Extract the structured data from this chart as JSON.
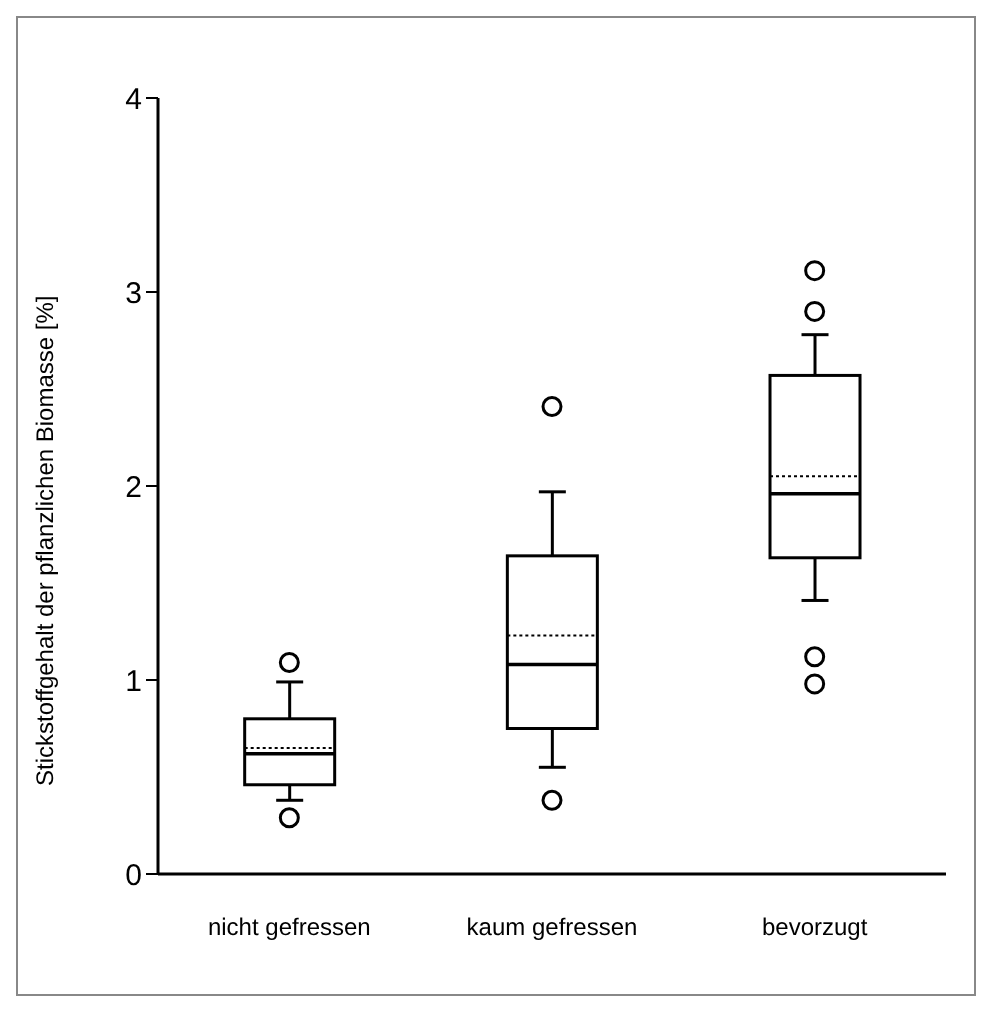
{
  "chart_data": {
    "type": "box",
    "ylabel": "Stickstoffgehalt der pflanzlichen Biomasse [%]",
    "categories": [
      "nicht gefressen",
      "kaum gefressen",
      "bevorzugt"
    ],
    "color": "#000000",
    "ylim": [
      0,
      4
    ],
    "yticks": [
      0,
      1,
      2,
      3,
      4
    ],
    "grid": false,
    "legend": false,
    "boxes": [
      {
        "low": 0.38,
        "q1": 0.46,
        "median": 0.62,
        "q3": 0.8,
        "high": 0.99,
        "mean": 0.65,
        "outliers": [
          1.09,
          0.29
        ]
      },
      {
        "low": 0.55,
        "q1": 0.75,
        "median": 1.08,
        "q3": 1.64,
        "high": 1.97,
        "mean": 1.23,
        "outliers": [
          2.41,
          0.38
        ]
      },
      {
        "low": 1.41,
        "q1": 1.63,
        "median": 1.96,
        "q3": 2.57,
        "high": 2.78,
        "mean": 2.05,
        "outliers": [
          3.11,
          2.9,
          1.12,
          0.98
        ]
      }
    ]
  }
}
